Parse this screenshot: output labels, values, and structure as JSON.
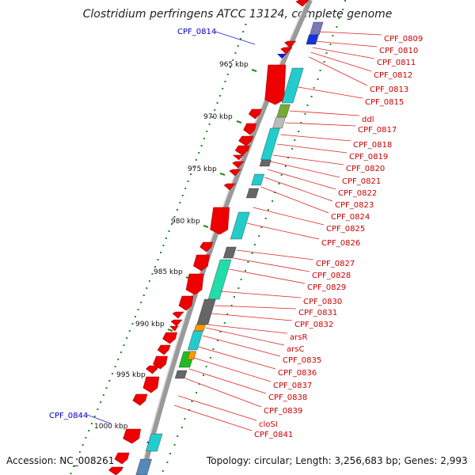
{
  "title": "Clostridium perfringens ATCC 13124, complete genome",
  "accession": "Accession: NC_008261",
  "summary": "Topology: circular; Length: 3,256,683 bp; Genes: 2,993",
  "colors": {
    "cds": "#ee0000",
    "backbone": "#888888",
    "gc_dot": "#1a8c1a",
    "forward_label": "#cc0000",
    "reverse_label": "#0000cc",
    "cyan": "#22cccc",
    "olive": "#77aa33",
    "grey": "#666666",
    "light_grey": "#bbbbbb",
    "blue": "#1133dd",
    "orange": "#ff9900",
    "green": "#22bb22",
    "teal": "#33bbbb",
    "steel": "#5588bb"
  },
  "scale_ticks": [
    "965 kbp",
    "970 kbp",
    "975 kbp",
    "980 kbp",
    "985 kbp",
    "990 kbp",
    "995 kbp",
    "1000 kbp"
  ],
  "right_labels": [
    "CPF_0809",
    "CPF_0810",
    "CPF_0811",
    "CPF_0812",
    "CPF_0813",
    "CPF_0815",
    "ddl",
    "CPF_0817",
    "CPF_0818",
    "CPF_0819",
    "CPF_0820",
    "CPF_0821",
    "CPF_0822",
    "CPF_0823",
    "CPF_0824",
    "CPF_0825",
    "CPF_0826",
    "CPF_0827",
    "CPF_0828",
    "CPF_0829",
    "CPF_0830",
    "CPF_0831",
    "CPF_0832",
    "arsR",
    "arsC",
    "CPF_0835",
    "CPF_0836",
    "CPF_0837",
    "CPF_0838",
    "CPF_0839",
    "cloSI",
    "CPF_0841"
  ],
  "left_labels": [
    "CPF_0814",
    "CPF_0844"
  ]
}
